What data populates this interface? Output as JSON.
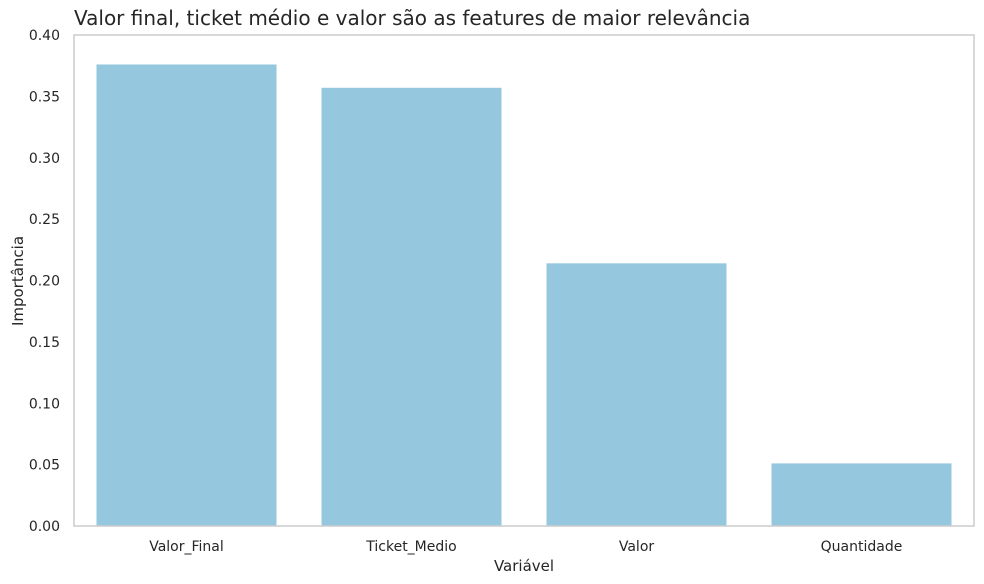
{
  "chart_data": {
    "type": "bar",
    "title": "Valor final, ticket médio e valor são as features de maior relevância",
    "xlabel": "Variável",
    "ylabel": "Importância",
    "categories": [
      "Valor_Final",
      "Ticket_Medio",
      "Valor",
      "Quantidade"
    ],
    "values": [
      0.376,
      0.357,
      0.214,
      0.051
    ],
    "ylim": [
      0,
      0.4
    ],
    "yticks": [
      "0.00",
      "0.05",
      "0.10",
      "0.15",
      "0.20",
      "0.25",
      "0.30",
      "0.35",
      "0.40"
    ],
    "grid": false,
    "bar_color": "#95c8de",
    "frame_color": "#cccccc",
    "text_color": "#262626"
  }
}
